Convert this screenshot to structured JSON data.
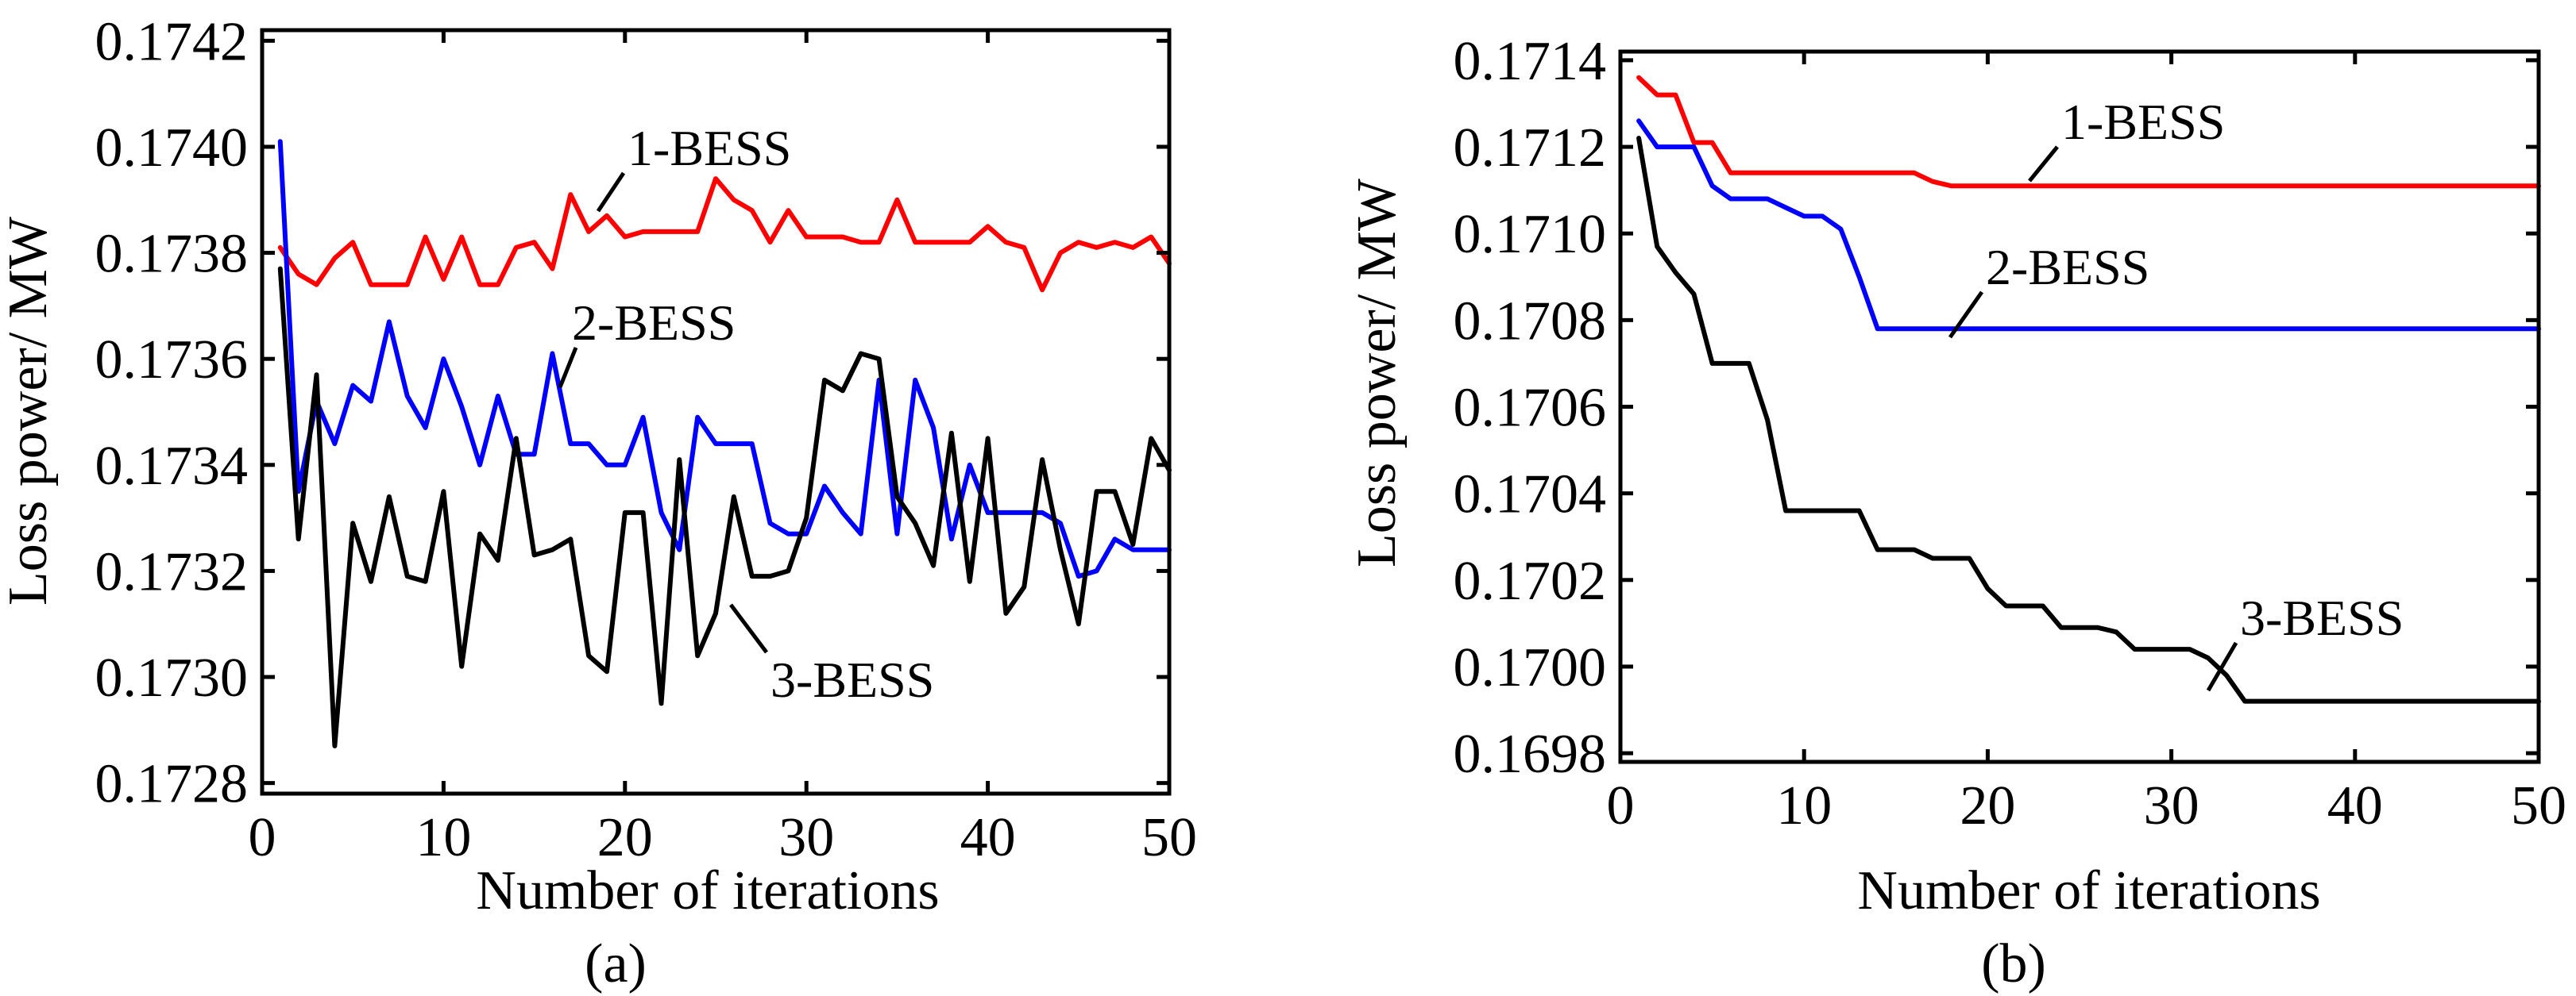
{
  "figure": {
    "panels": [
      "(a)",
      "(b)"
    ]
  },
  "chart_data": [
    {
      "id": "a",
      "type": "line",
      "caption": "(a)",
      "xlabel": "Number of iterations",
      "ylabel": "Loss power/ MW",
      "xlim": [
        0,
        50
      ],
      "ylim": [
        0.17278,
        0.17422
      ],
      "x_ticks": [
        0,
        10,
        20,
        30,
        40,
        50
      ],
      "x_tick_labels": [
        "0",
        "10",
        "20",
        "30",
        "40",
        "50"
      ],
      "y_ticks": [
        0.1728,
        0.173,
        0.1732,
        0.1734,
        0.1736,
        0.1738,
        0.174,
        0.1742
      ],
      "y_tick_labels": [
        "0.1728",
        "0.1730",
        "0.1732",
        "0.1734",
        "0.1736",
        "0.1738",
        "0.1740",
        "0.1742"
      ],
      "series": [
        {
          "name": "1-BESS",
          "color": "#ff0000",
          "x": [
            1,
            2,
            3,
            4,
            5,
            6,
            7,
            8,
            9,
            10,
            11,
            12,
            13,
            14,
            15,
            16,
            17,
            18,
            19,
            20,
            21,
            22,
            23,
            24,
            25,
            26,
            27,
            28,
            29,
            30,
            31,
            32,
            33,
            34,
            35,
            36,
            37,
            38,
            39,
            40,
            41,
            42,
            43,
            44,
            45,
            46,
            47,
            48,
            49,
            50
          ],
          "values": [
            0.17381,
            0.17376,
            0.17374,
            0.17379,
            0.17382,
            0.17374,
            0.17374,
            0.17374,
            0.17383,
            0.17375,
            0.17383,
            0.17374,
            0.17374,
            0.17381,
            0.17382,
            0.17377,
            0.17391,
            0.17384,
            0.17387,
            0.17383,
            0.17384,
            0.17384,
            0.17384,
            0.17384,
            0.17394,
            0.1739,
            0.17388,
            0.17382,
            0.17388,
            0.17383,
            0.17383,
            0.17383,
            0.17382,
            0.17382,
            0.1739,
            0.17382,
            0.17382,
            0.17382,
            0.17382,
            0.17385,
            0.17382,
            0.17381,
            0.17373,
            0.1738,
            0.17382,
            0.17381,
            0.17382,
            0.17381,
            0.17383,
            0.17378
          ]
        },
        {
          "name": "2-BESS",
          "color": "#0000ff",
          "x": [
            1,
            2,
            3,
            4,
            5,
            6,
            7,
            8,
            9,
            10,
            11,
            12,
            13,
            14,
            15,
            16,
            17,
            18,
            19,
            20,
            21,
            22,
            23,
            24,
            25,
            26,
            27,
            28,
            29,
            30,
            31,
            32,
            33,
            34,
            35,
            36,
            37,
            38,
            39,
            40,
            41,
            42,
            43,
            44,
            45,
            46,
            47,
            48,
            49,
            50
          ],
          "values": [
            0.17401,
            0.17335,
            0.17352,
            0.17344,
            0.17355,
            0.17352,
            0.17367,
            0.17353,
            0.17347,
            0.1736,
            0.17351,
            0.1734,
            0.17353,
            0.17342,
            0.17342,
            0.17361,
            0.17344,
            0.17344,
            0.1734,
            0.1734,
            0.17349,
            0.17331,
            0.17324,
            0.17349,
            0.17344,
            0.17344,
            0.17344,
            0.17329,
            0.17327,
            0.17327,
            0.17336,
            0.17331,
            0.17327,
            0.17356,
            0.17327,
            0.17356,
            0.17347,
            0.17326,
            0.1734,
            0.17331,
            0.17331,
            0.17331,
            0.17331,
            0.17329,
            0.17319,
            0.1732,
            0.17326,
            0.17324,
            0.17324,
            0.17324
          ]
        },
        {
          "name": "3-BESS",
          "color": "#000000",
          "x": [
            1,
            2,
            3,
            4,
            5,
            6,
            7,
            8,
            9,
            10,
            11,
            12,
            13,
            14,
            15,
            16,
            17,
            18,
            19,
            20,
            21,
            22,
            23,
            24,
            25,
            26,
            27,
            28,
            29,
            30,
            31,
            32,
            33,
            34,
            35,
            36,
            37,
            38,
            39,
            40,
            41,
            42,
            43,
            44,
            45,
            46,
            47,
            48,
            49,
            50
          ],
          "values": [
            0.17377,
            0.17326,
            0.17357,
            0.17287,
            0.17329,
            0.17318,
            0.17334,
            0.17319,
            0.17318,
            0.17335,
            0.17302,
            0.17327,
            0.17322,
            0.17345,
            0.17323,
            0.17324,
            0.17326,
            0.17304,
            0.17301,
            0.17331,
            0.17331,
            0.17295,
            0.17341,
            0.17304,
            0.17312,
            0.17334,
            0.17319,
            0.17319,
            0.1732,
            0.1733,
            0.17356,
            0.17354,
            0.17361,
            0.1736,
            0.17334,
            0.17329,
            0.17321,
            0.17346,
            0.17318,
            0.17345,
            0.17312,
            0.17317,
            0.17341,
            0.17324,
            0.1731,
            0.17335,
            0.17335,
            0.17325,
            0.17345,
            0.17339
          ]
        }
      ]
    },
    {
      "id": "b",
      "type": "line",
      "caption": "(b)",
      "xlabel": "Number of iterations",
      "ylabel": "Loss power/ MW",
      "xlim": [
        0,
        50
      ],
      "ylim": [
        0.16978,
        0.17142
      ],
      "x_ticks": [
        0,
        10,
        20,
        30,
        40,
        50
      ],
      "x_tick_labels": [
        "0",
        "10",
        "20",
        "30",
        "40",
        "50"
      ],
      "y_ticks": [
        0.1698,
        0.17,
        0.1702,
        0.1704,
        0.1706,
        0.1708,
        0.171,
        0.1712,
        0.1714
      ],
      "y_tick_labels": [
        "0.1698",
        "0.1700",
        "0.1702",
        "0.1704",
        "0.1706",
        "0.1708",
        "0.1710",
        "0.1712",
        "0.1714"
      ],
      "series": [
        {
          "name": "1-BESS",
          "color": "#ff0000",
          "x": [
            1,
            2,
            3,
            4,
            5,
            6,
            12,
            16,
            17,
            18,
            19,
            50
          ],
          "values": [
            0.17136,
            0.17132,
            0.17132,
            0.17121,
            0.17121,
            0.17114,
            0.17114,
            0.17114,
            0.17112,
            0.17111,
            0.17111,
            0.17111
          ]
        },
        {
          "name": "2-BESS",
          "color": "#0000ff",
          "x": [
            1,
            2,
            3,
            4,
            5,
            6,
            7,
            8,
            9,
            10,
            11,
            12,
            13,
            14,
            50
          ],
          "values": [
            0.17126,
            0.1712,
            0.1712,
            0.1712,
            0.17111,
            0.17108,
            0.17108,
            0.17108,
            0.17106,
            0.17104,
            0.17104,
            0.17101,
            0.1709,
            0.17078,
            0.17078
          ]
        },
        {
          "name": "3-BESS",
          "color": "#000000",
          "x": [
            1,
            2,
            3,
            4,
            5,
            6,
            7,
            8,
            9,
            10,
            11,
            12,
            13,
            14,
            15,
            16,
            17,
            18,
            19,
            20,
            21,
            22,
            23,
            24,
            25,
            26,
            27,
            28,
            29,
            30,
            31,
            32,
            33,
            34,
            50
          ],
          "values": [
            0.17122,
            0.17097,
            0.17091,
            0.17086,
            0.1707,
            0.1707,
            0.1707,
            0.17057,
            0.17036,
            0.17036,
            0.17036,
            0.17036,
            0.17036,
            0.17027,
            0.17027,
            0.17027,
            0.17025,
            0.17025,
            0.17025,
            0.17018,
            0.17014,
            0.17014,
            0.17014,
            0.17009,
            0.17009,
            0.17009,
            0.17008,
            0.17004,
            0.17004,
            0.17004,
            0.17004,
            0.17002,
            0.16998,
            0.16992,
            0.16992
          ]
        }
      ]
    }
  ]
}
